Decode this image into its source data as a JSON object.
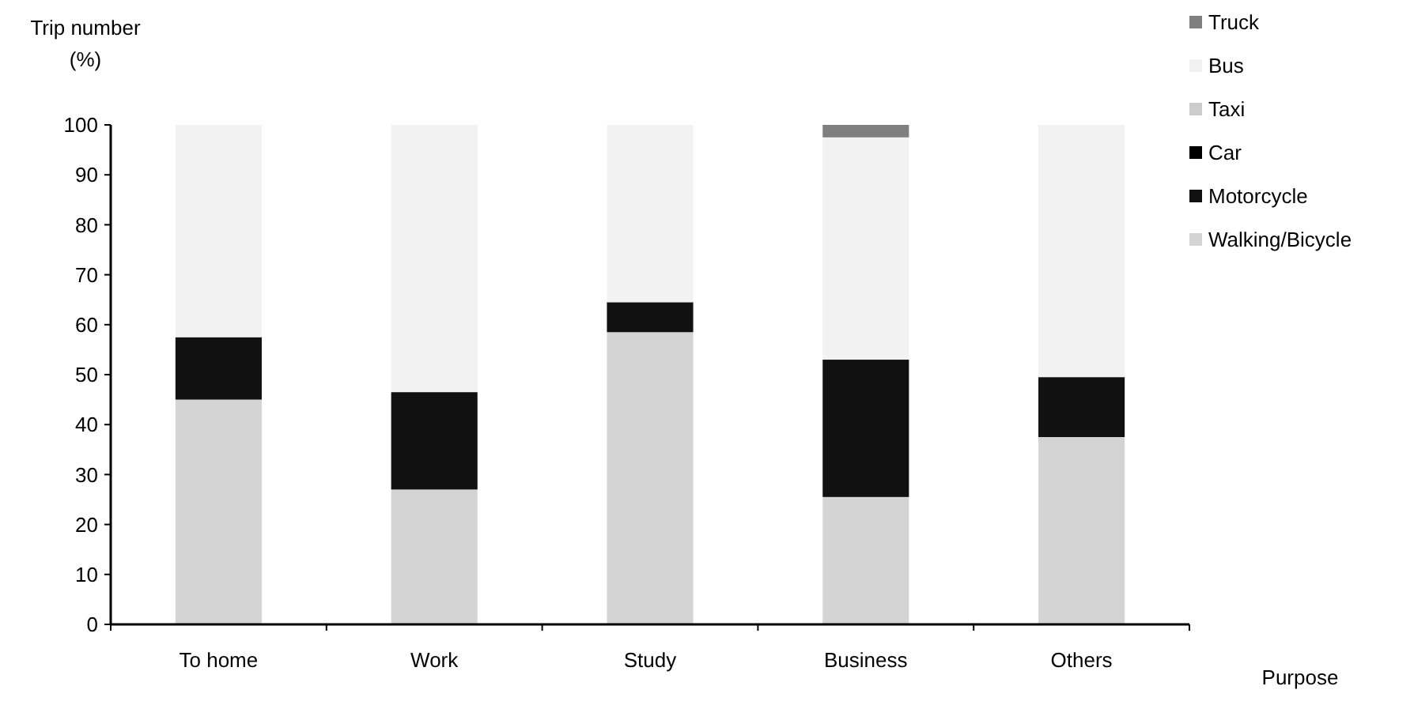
{
  "chart_data": {
    "type": "bar",
    "stacked": true,
    "xlabel": "Purpose",
    "ylabel": "Trip number\n(%)",
    "categories": [
      "To home",
      "Work",
      "Study",
      "Business",
      "Others"
    ],
    "series": [
      {
        "name": "Walking/Bicycle",
        "color": "#d4d4d4",
        "values": [
          45,
          27,
          58.5,
          25.5,
          37.5
        ]
      },
      {
        "name": "Motorcycle",
        "color": "#111111",
        "values": [
          12.5,
          19.5,
          6,
          27.5,
          12
        ]
      },
      {
        "name": "Car",
        "color": "#000000",
        "values": [
          null,
          null,
          null,
          null,
          null
        ]
      },
      {
        "name": "Taxi",
        "color": "#cccccc",
        "values": [
          null,
          null,
          null,
          null,
          null
        ]
      },
      {
        "name": "Bus",
        "color": "#f2f2f2",
        "values": [
          42.5,
          53.5,
          35.5,
          44.5,
          50.5
        ]
      },
      {
        "name": "Truck",
        "color": "#7f7f7f",
        "values": [
          null,
          null,
          null,
          2.5,
          null
        ]
      }
    ],
    "ylim": [
      0,
      100
    ],
    "yticks": [
      0,
      10,
      20,
      30,
      40,
      50,
      60,
      70,
      80,
      90,
      100
    ],
    "grid": false,
    "legend": "top right"
  }
}
